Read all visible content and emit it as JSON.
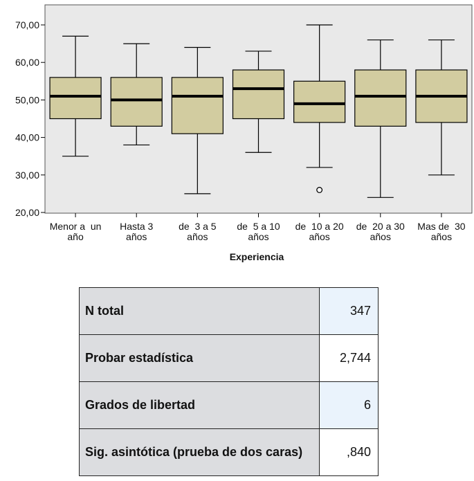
{
  "chart_data": {
    "type": "boxplot",
    "xlabel": "Experiencia",
    "ylabel": "",
    "ylim": [
      20,
      75
    ],
    "yticks": [
      "20,00",
      "30,00",
      "40,00",
      "50,00",
      "60,00",
      "70,00"
    ],
    "grid": false,
    "categories": [
      [
        "Menor a  un",
        "año"
      ],
      [
        "Hasta 3",
        "años"
      ],
      [
        "de  3 a 5",
        "años"
      ],
      [
        "de  5 a 10",
        "años"
      ],
      [
        "de  10 a 20",
        "años"
      ],
      [
        "de  20 a 30",
        "años"
      ],
      [
        "Mas de  30",
        "años"
      ]
    ],
    "boxes": [
      {
        "min": 35,
        "q1": 45,
        "median": 51,
        "q3": 56,
        "max": 67,
        "outliers": []
      },
      {
        "min": 38,
        "q1": 43,
        "median": 50,
        "q3": 56,
        "max": 65,
        "outliers": []
      },
      {
        "min": 25,
        "q1": 41,
        "median": 51,
        "q3": 56,
        "max": 64,
        "outliers": []
      },
      {
        "min": 36,
        "q1": 45,
        "median": 53,
        "q3": 58,
        "max": 63,
        "outliers": []
      },
      {
        "min": 32,
        "q1": 44,
        "median": 49,
        "q3": 55,
        "max": 70,
        "outliers": [
          26
        ]
      },
      {
        "min": 24,
        "q1": 43,
        "median": 51,
        "q3": 58,
        "max": 66,
        "outliers": []
      },
      {
        "min": 30,
        "q1": 44,
        "median": 51,
        "q3": 58,
        "max": 66,
        "outliers": []
      }
    ],
    "colors": {
      "plot_background": "#e9e9e9",
      "box_fill": "#d2cca0",
      "stroke": "#000000"
    }
  },
  "stats_table": {
    "rows": [
      {
        "label": "N total",
        "value": "347"
      },
      {
        "label": "Probar estadística",
        "value": "2,744"
      },
      {
        "label": "Grados de libertad",
        "value": "6"
      },
      {
        "label": "Sig. asintótica (prueba de dos caras)",
        "value": ",840"
      }
    ],
    "colors": {
      "label_background": "#dcdde0",
      "value_highlight": "#eaf3fc"
    }
  }
}
